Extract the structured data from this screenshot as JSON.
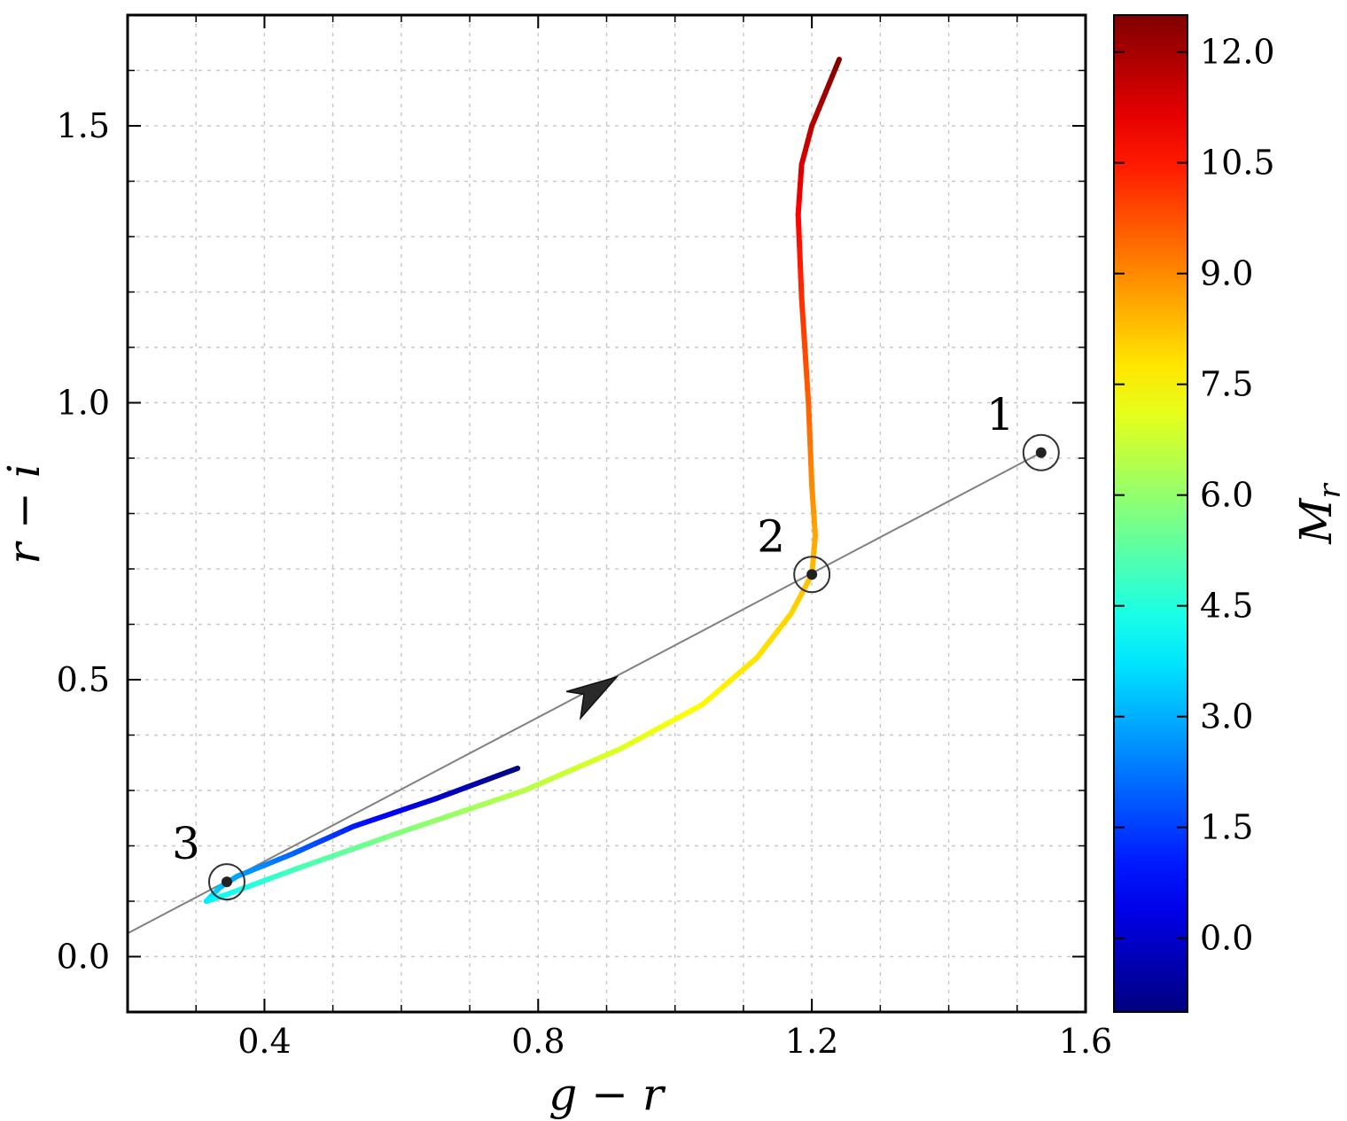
{
  "chart_data": {
    "type": "line",
    "xlabel": "g − r",
    "ylabel": "r − i",
    "xlim": [
      0.2,
      1.6
    ],
    "ylim": [
      -0.1,
      1.7
    ],
    "x_ticks": [
      0.4,
      0.8,
      1.2,
      1.6
    ],
    "y_ticks": [
      0.0,
      0.5,
      1.0,
      1.5
    ],
    "x_tick_labels": [
      "0.4",
      "0.8",
      "1.2",
      "1.6"
    ],
    "y_tick_labels": [
      "0.0",
      "0.5",
      "1.0",
      "1.5"
    ],
    "grid": true,
    "colorbar": {
      "label": "M_r",
      "label_display": "M",
      "label_sub": "r",
      "range": [
        -1.0,
        12.5
      ],
      "ticks": [
        0.0,
        1.5,
        3.0,
        4.5,
        6.0,
        7.5,
        9.0,
        10.5,
        12.0
      ],
      "tick_labels": [
        "0.0",
        "1.5",
        "3.0",
        "4.5",
        "6.0",
        "7.5",
        "9.0",
        "10.5",
        "12.0"
      ],
      "colormap": "jet"
    },
    "track": {
      "name": "",
      "points": [
        {
          "x": 0.77,
          "y": 0.34,
          "c": -1.0
        },
        {
          "x": 0.65,
          "y": 0.285,
          "c": 0.0
        },
        {
          "x": 0.53,
          "y": 0.235,
          "c": 1.0
        },
        {
          "x": 0.44,
          "y": 0.185,
          "c": 2.0
        },
        {
          "x": 0.36,
          "y": 0.145,
          "c": 2.8
        },
        {
          "x": 0.335,
          "y": 0.125,
          "c": 3.2
        },
        {
          "x": 0.315,
          "y": 0.1,
          "c": 3.8
        },
        {
          "x": 0.34,
          "y": 0.11,
          "c": 4.2
        },
        {
          "x": 0.45,
          "y": 0.16,
          "c": 5.0
        },
        {
          "x": 0.6,
          "y": 0.225,
          "c": 5.8
        },
        {
          "x": 0.78,
          "y": 0.3,
          "c": 6.5
        },
        {
          "x": 0.92,
          "y": 0.375,
          "c": 7.0
        },
        {
          "x": 1.04,
          "y": 0.455,
          "c": 7.5
        },
        {
          "x": 1.12,
          "y": 0.54,
          "c": 7.8
        },
        {
          "x": 1.17,
          "y": 0.62,
          "c": 8.0
        },
        {
          "x": 1.2,
          "y": 0.69,
          "c": 8.3
        },
        {
          "x": 1.205,
          "y": 0.76,
          "c": 8.6
        },
        {
          "x": 1.2,
          "y": 0.85,
          "c": 9.0
        },
        {
          "x": 1.195,
          "y": 1.0,
          "c": 9.5
        },
        {
          "x": 1.185,
          "y": 1.19,
          "c": 10.2
        },
        {
          "x": 1.18,
          "y": 1.34,
          "c": 10.8
        },
        {
          "x": 1.185,
          "y": 1.43,
          "c": 11.3
        },
        {
          "x": 1.2,
          "y": 1.5,
          "c": 11.7
        },
        {
          "x": 1.24,
          "y": 1.62,
          "c": 12.5
        }
      ]
    },
    "reddening_line": {
      "x1": 0.2,
      "y1": 0.042,
      "x2": 1.535,
      "y2": 0.91,
      "arrow": {
        "x": 0.915,
        "y": 0.505,
        "direction_x": 1.535,
        "direction_y": 0.91
      },
      "color": "#808080"
    },
    "markers": [
      {
        "label": "1",
        "x": 1.535,
        "y": 0.91
      },
      {
        "label": "2",
        "x": 1.2,
        "y": 0.69
      },
      {
        "label": "3",
        "x": 0.345,
        "y": 0.135
      }
    ]
  }
}
